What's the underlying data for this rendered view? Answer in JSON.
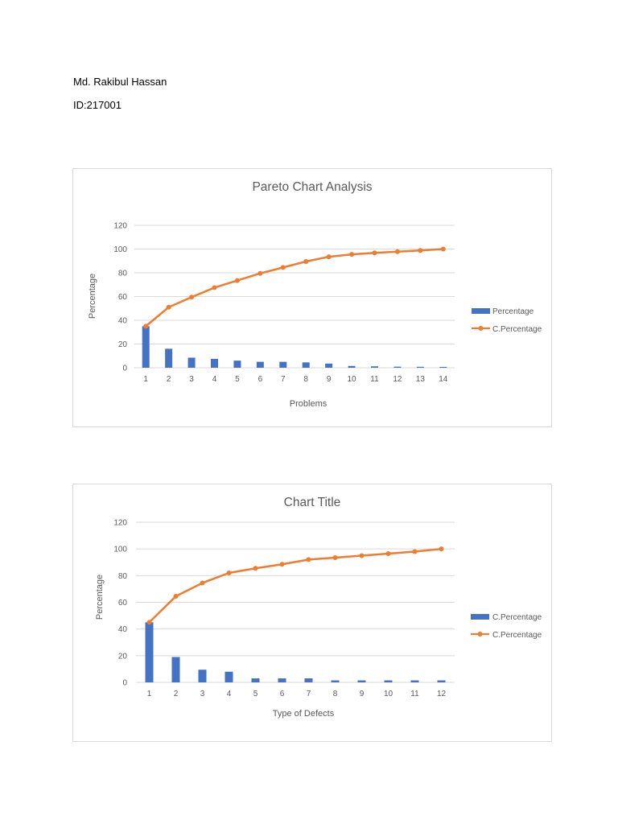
{
  "document": {
    "author": "Md. Rakibul Hassan",
    "student_id": "ID:217001"
  },
  "colors": {
    "bar": "#4472c4",
    "line": "#ed7d31",
    "grid": "#d9d9d9",
    "text": "#595959"
  },
  "chart_data": [
    {
      "type": "bar",
      "title": "Pareto Chart Analysis",
      "xlabel": "Problems",
      "ylabel": "Percentage",
      "ylim": [
        0,
        120
      ],
      "yticks": [
        "0",
        "20",
        "40",
        "60",
        "80",
        "100",
        "120"
      ],
      "categories": [
        "1",
        "2",
        "3",
        "4",
        "5",
        "6",
        "7",
        "8",
        "9",
        "10",
        "11",
        "12",
        "13",
        "14"
      ],
      "grid": true,
      "legend_position": "right",
      "series": [
        {
          "name": "Percentage",
          "type": "bar",
          "values": [
            35,
            16,
            8.5,
            7.5,
            6,
            5,
            5,
            4.5,
            3.5,
            1.5,
            1.2,
            0.9,
            0.8,
            0.7
          ]
        },
        {
          "name": "C.Percentage",
          "type": "line",
          "values": [
            35,
            51,
            59.5,
            67.5,
            73.5,
            79.5,
            84.5,
            89.5,
            93.5,
            95.5,
            96.8,
            97.8,
            98.8,
            100
          ]
        }
      ]
    },
    {
      "type": "bar",
      "title": "Chart Title",
      "xlabel": "Type of Defects",
      "ylabel": "Percentage",
      "ylim": [
        0,
        120
      ],
      "yticks": [
        "0",
        "20",
        "40",
        "60",
        "80",
        "100",
        "120"
      ],
      "categories": [
        "1",
        "2",
        "3",
        "4",
        "5",
        "6",
        "7",
        "8",
        "9",
        "10",
        "11",
        "12"
      ],
      "grid": true,
      "legend_position": "right",
      "series": [
        {
          "name": "C.Percentage",
          "type": "bar",
          "values": [
            45,
            19,
            9.5,
            8,
            3,
            3,
            3,
            1.5,
            1.5,
            1.5,
            1.5,
            1.5
          ]
        },
        {
          "name": "C.Percentage",
          "type": "line",
          "values": [
            45,
            64.5,
            74.5,
            82,
            85.5,
            88.5,
            92,
            93.5,
            95,
            96.5,
            98,
            100
          ]
        }
      ]
    }
  ]
}
